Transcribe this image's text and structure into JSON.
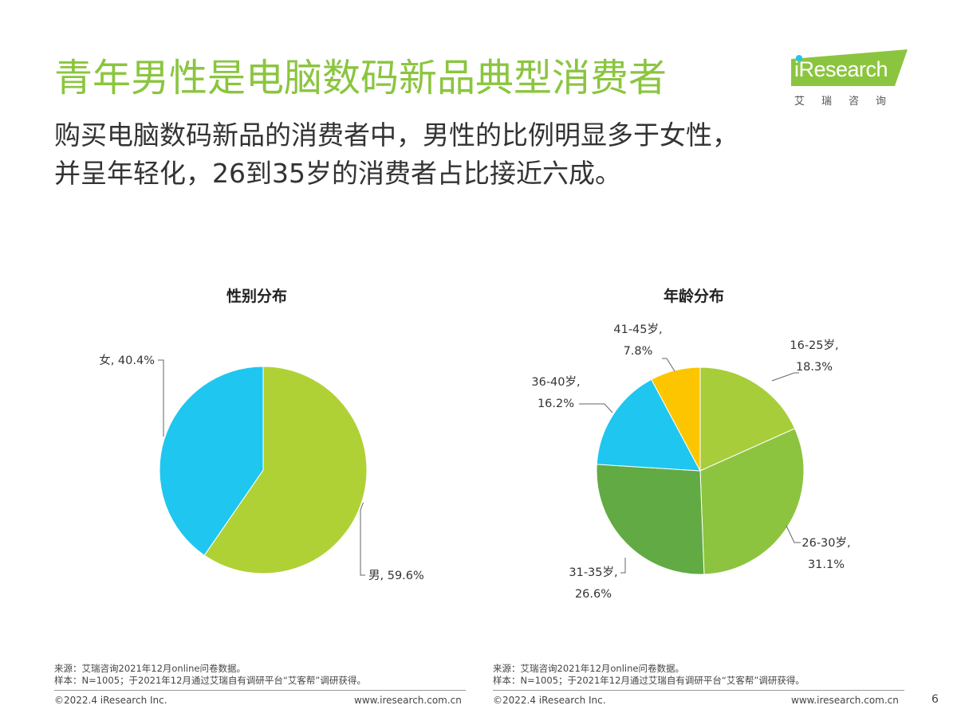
{
  "header": {
    "title": "青年男性是电脑数码新品典型消费者",
    "subtitle_line1": "购买电脑数码新品的消费者中，男性的比例明显多于女性，",
    "subtitle_line2": "并呈年轻化，26到35岁的消费者占比接近六成。"
  },
  "logo": {
    "word": "iResearch",
    "cn": "艾瑞咨询",
    "color": "#8bc53f"
  },
  "chart_data": [
    {
      "type": "pie",
      "title": "性别分布",
      "slices": [
        {
          "label": "男",
          "value": 59.6,
          "display": "男, 59.6%",
          "color": "#b0d136"
        },
        {
          "label": "女",
          "value": 40.4,
          "display": "女, 40.4%",
          "color": "#1fc6ef"
        }
      ]
    },
    {
      "type": "pie",
      "title": "年龄分布",
      "slices": [
        {
          "label": "16-25岁",
          "value": 18.3,
          "label_line1": "16-25岁,",
          "label_line2": "18.3%",
          "color": "#a8cd3a"
        },
        {
          "label": "26-30岁",
          "value": 31.1,
          "label_line1": "26-30岁,",
          "label_line2": "31.1%",
          "color": "#8cc43f"
        },
        {
          "label": "31-35岁",
          "value": 26.6,
          "label_line1": "31-35岁,",
          "label_line2": "26.6%",
          "color": "#62aa44"
        },
        {
          "label": "36-40岁",
          "value": 16.2,
          "label_line1": "36-40岁,",
          "label_line2": "16.2%",
          "color": "#1fc6ef"
        },
        {
          "label": "41-45岁",
          "value": 7.8,
          "label_line1": "41-45岁,",
          "label_line2": "7.8%",
          "color": "#fdc500"
        }
      ]
    }
  ],
  "notes": {
    "left_source": "来源：艾瑞咨询2021年12月online问卷数据。",
    "left_sample": "样本：N=1005；于2021年12月通过艾瑞自有调研平台“艾客帮”调研获得。",
    "right_source": "来源：艾瑞咨询2021年12月online问卷数据。",
    "right_sample": "样本：N=1005；于2021年12月通过艾瑞自有调研平台“艾客帮”调研获得。"
  },
  "footer": {
    "left_copyright": "©2022.4 iResearch Inc.",
    "left_url": "www.iresearch.com.cn",
    "right_copyright": "©2022.4 iResearch Inc.",
    "right_url": "www.iresearch.com.cn",
    "page_number": "6"
  }
}
